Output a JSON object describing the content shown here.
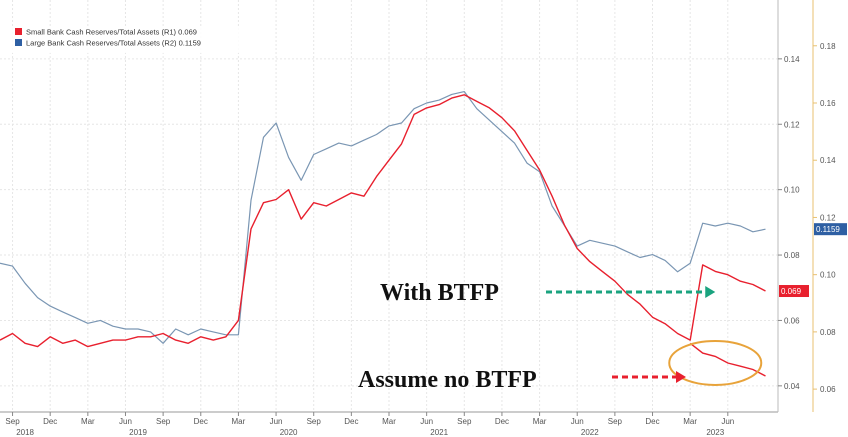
{
  "chart_data": {
    "type": "line",
    "x_axis": {
      "months": [
        {
          "label": "Sep",
          "date": "2018-09"
        },
        {
          "label": "Dec",
          "date": "2018-12"
        },
        {
          "label": "Mar",
          "date": "2019-03"
        },
        {
          "label": "Jun",
          "date": "2019-06"
        },
        {
          "label": "Sep",
          "date": "2019-09"
        },
        {
          "label": "Dec",
          "date": "2019-12"
        },
        {
          "label": "Mar",
          "date": "2020-03"
        },
        {
          "label": "Jun",
          "date": "2020-06"
        },
        {
          "label": "Sep",
          "date": "2020-09"
        },
        {
          "label": "Dec",
          "date": "2020-12"
        },
        {
          "label": "Mar",
          "date": "2021-03"
        },
        {
          "label": "Jun",
          "date": "2021-06"
        },
        {
          "label": "Sep",
          "date": "2021-09"
        },
        {
          "label": "Dec",
          "date": "2021-12"
        },
        {
          "label": "Mar",
          "date": "2022-03"
        },
        {
          "label": "Jun",
          "date": "2022-06"
        },
        {
          "label": "Sep",
          "date": "2022-09"
        },
        {
          "label": "Dec",
          "date": "2022-12"
        },
        {
          "label": "Mar",
          "date": "2023-03"
        },
        {
          "label": "Jun",
          "date": "2023-06"
        }
      ],
      "years": [
        {
          "label": "2018",
          "date": "2018-10"
        },
        {
          "label": "2019",
          "date": "2019-07"
        },
        {
          "label": "2020",
          "date": "2020-07"
        },
        {
          "label": "2021",
          "date": "2021-07"
        },
        {
          "label": "2022",
          "date": "2022-07"
        },
        {
          "label": "2023",
          "date": "2023-05"
        }
      ],
      "range": [
        "2018-08",
        "2023-10"
      ]
    },
    "y_axis_right_inner": {
      "ticks": [
        "0.04",
        "0.06",
        "0.08",
        "0.10",
        "0.12",
        "0.14"
      ],
      "range": [
        0.032,
        0.158
      ],
      "applies_to": "Small Bank Cash Reserves/Total Assets (R1)"
    },
    "y_axis_right_outer": {
      "ticks": [
        "0.06",
        "0.08",
        "0.10",
        "0.12",
        "0.14",
        "0.16",
        "0.18"
      ],
      "range": [
        0.052,
        0.196
      ],
      "applies_to": "Large Bank Cash Reserves/Total Assets (R2)"
    },
    "legend": {
      "placement": "top-left",
      "entries": [
        {
          "text": "Small Bank Cash Reserves/Total Assets (R1) 0.069",
          "color": "#e8202e"
        },
        {
          "text": "Large Bank Cash Reserves/Total Assets (R2) 0.1159",
          "color": "#2e5fa3"
        }
      ]
    },
    "series": [
      {
        "name": "Small Bank Cash Reserves/Total Assets (R1)",
        "color": "#e8202e",
        "axis": "R1",
        "last_value_label": "0.069",
        "points": [
          [
            "2018-08",
            0.054
          ],
          [
            "2018-09",
            0.056
          ],
          [
            "2018-10",
            0.053
          ],
          [
            "2018-11",
            0.052
          ],
          [
            "2018-12",
            0.055
          ],
          [
            "2019-01",
            0.053
          ],
          [
            "2019-02",
            0.054
          ],
          [
            "2019-03",
            0.052
          ],
          [
            "2019-04",
            0.053
          ],
          [
            "2019-05",
            0.054
          ],
          [
            "2019-06",
            0.054
          ],
          [
            "2019-07",
            0.055
          ],
          [
            "2019-08",
            0.055
          ],
          [
            "2019-09",
            0.056
          ],
          [
            "2019-10",
            0.054
          ],
          [
            "2019-11",
            0.053
          ],
          [
            "2019-12",
            0.055
          ],
          [
            "2020-01",
            0.054
          ],
          [
            "2020-02",
            0.055
          ],
          [
            "2020-03",
            0.06
          ],
          [
            "2020-04",
            0.088
          ],
          [
            "2020-05",
            0.096
          ],
          [
            "2020-06",
            0.097
          ],
          [
            "2020-07",
            0.1
          ],
          [
            "2020-08",
            0.091
          ],
          [
            "2020-09",
            0.096
          ],
          [
            "2020-10",
            0.095
          ],
          [
            "2020-11",
            0.097
          ],
          [
            "2020-12",
            0.099
          ],
          [
            "2021-01",
            0.098
          ],
          [
            "2021-02",
            0.104
          ],
          [
            "2021-03",
            0.109
          ],
          [
            "2021-04",
            0.114
          ],
          [
            "2021-05",
            0.123
          ],
          [
            "2021-06",
            0.125
          ],
          [
            "2021-07",
            0.126
          ],
          [
            "2021-08",
            0.128
          ],
          [
            "2021-09",
            0.129
          ],
          [
            "2021-10",
            0.127
          ],
          [
            "2021-11",
            0.125
          ],
          [
            "2021-12",
            0.122
          ],
          [
            "2022-01",
            0.118
          ],
          [
            "2022-02",
            0.112
          ],
          [
            "2022-03",
            0.106
          ],
          [
            "2022-04",
            0.098
          ],
          [
            "2022-05",
            0.089
          ],
          [
            "2022-06",
            0.082
          ],
          [
            "2022-07",
            0.078
          ],
          [
            "2022-08",
            0.075
          ],
          [
            "2022-09",
            0.072
          ],
          [
            "2022-10",
            0.068
          ],
          [
            "2022-11",
            0.065
          ],
          [
            "2022-12",
            0.061
          ],
          [
            "2023-01",
            0.059
          ],
          [
            "2023-02",
            0.056
          ],
          [
            "2023-03",
            0.054
          ],
          [
            "2023-04",
            0.077
          ],
          [
            "2023-05",
            0.075
          ],
          [
            "2023-06",
            0.074
          ],
          [
            "2023-07",
            0.072
          ],
          [
            "2023-08",
            0.071
          ],
          [
            "2023-09",
            0.069
          ]
        ]
      },
      {
        "name": "Large Bank Cash Reserves/Total Assets (R2)",
        "color": "#7a96b3",
        "axis": "R2",
        "last_value_label": "0.1159",
        "points": [
          [
            "2018-08",
            0.104
          ],
          [
            "2018-09",
            0.103
          ],
          [
            "2018-10",
            0.097
          ],
          [
            "2018-11",
            0.092
          ],
          [
            "2018-12",
            0.089
          ],
          [
            "2019-01",
            0.087
          ],
          [
            "2019-02",
            0.085
          ],
          [
            "2019-03",
            0.083
          ],
          [
            "2019-04",
            0.084
          ],
          [
            "2019-05",
            0.082
          ],
          [
            "2019-06",
            0.081
          ],
          [
            "2019-07",
            0.081
          ],
          [
            "2019-08",
            0.08
          ],
          [
            "2019-09",
            0.076
          ],
          [
            "2019-10",
            0.081
          ],
          [
            "2019-11",
            0.079
          ],
          [
            "2019-12",
            0.081
          ],
          [
            "2020-01",
            0.08
          ],
          [
            "2020-02",
            0.079
          ],
          [
            "2020-03",
            0.079
          ],
          [
            "2020-04",
            0.126
          ],
          [
            "2020-05",
            0.148
          ],
          [
            "2020-06",
            0.153
          ],
          [
            "2020-07",
            0.141
          ],
          [
            "2020-08",
            0.133
          ],
          [
            "2020-09",
            0.142
          ],
          [
            "2020-10",
            0.144
          ],
          [
            "2020-11",
            0.146
          ],
          [
            "2020-12",
            0.145
          ],
          [
            "2021-01",
            0.147
          ],
          [
            "2021-02",
            0.149
          ],
          [
            "2021-03",
            0.152
          ],
          [
            "2021-04",
            0.153
          ],
          [
            "2021-05",
            0.158
          ],
          [
            "2021-06",
            0.16
          ],
          [
            "2021-07",
            0.161
          ],
          [
            "2021-08",
            0.163
          ],
          [
            "2021-09",
            0.164
          ],
          [
            "2021-10",
            0.158
          ],
          [
            "2021-11",
            0.154
          ],
          [
            "2021-12",
            0.15
          ],
          [
            "2022-01",
            0.146
          ],
          [
            "2022-02",
            0.139
          ],
          [
            "2022-03",
            0.136
          ],
          [
            "2022-04",
            0.124
          ],
          [
            "2022-05",
            0.117
          ],
          [
            "2022-06",
            0.11
          ],
          [
            "2022-07",
            0.112
          ],
          [
            "2022-08",
            0.111
          ],
          [
            "2022-09",
            0.11
          ],
          [
            "2022-10",
            0.108
          ],
          [
            "2022-11",
            0.106
          ],
          [
            "2022-12",
            0.107
          ],
          [
            "2023-01",
            0.105
          ],
          [
            "2023-02",
            0.101
          ],
          [
            "2023-03",
            0.104
          ],
          [
            "2023-04",
            0.118
          ],
          [
            "2023-05",
            0.117
          ],
          [
            "2023-06",
            0.118
          ],
          [
            "2023-07",
            0.117
          ],
          [
            "2023-08",
            0.115
          ],
          [
            "2023-09",
            0.1159
          ]
        ]
      }
    ],
    "annotations": [
      {
        "text": "With BTFP",
        "arrow_color": "#1aa37f",
        "points_to": "Small Bank Cash Reserves/Total Assets (R1)",
        "at": [
          "2023-05",
          0.075
        ]
      },
      {
        "text": "Assume no BTFP",
        "arrow_color": "#e8202e",
        "points_to": "projected path without BTFP",
        "at": [
          "2023-01",
          0.046
        ]
      }
    ],
    "projection_no_btfp": {
      "color": "#e8202e",
      "points": [
        [
          "2023-03",
          0.053
        ],
        [
          "2023-04",
          0.05
        ],
        [
          "2023-05",
          0.049
        ],
        [
          "2023-06",
          0.047
        ],
        [
          "2023-07",
          0.046
        ],
        [
          "2023-08",
          0.045
        ],
        [
          "2023-09",
          0.043
        ]
      ]
    },
    "highlight": {
      "shape": "ellipse",
      "color": "#e8a33a",
      "center": [
        "2023-05",
        0.047
      ]
    },
    "grid": true
  }
}
